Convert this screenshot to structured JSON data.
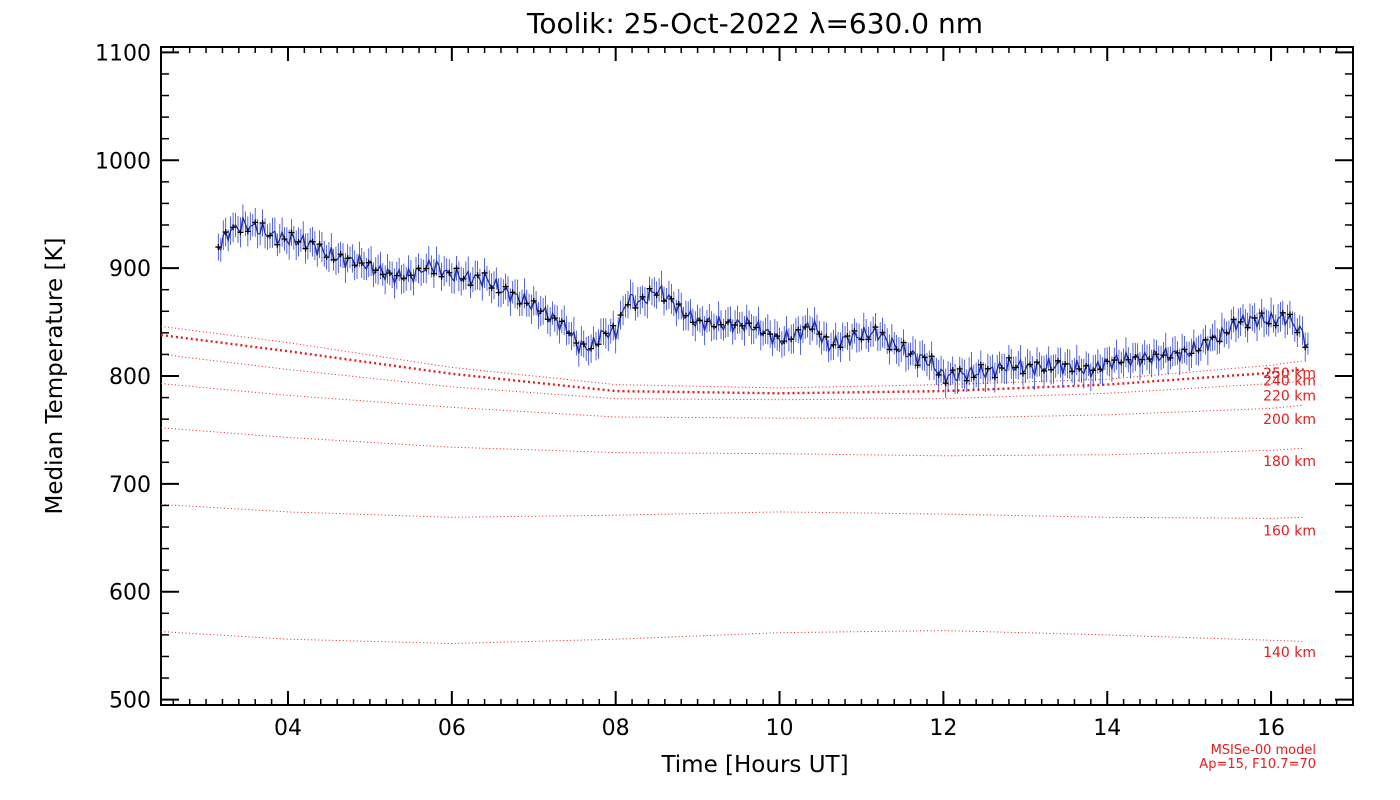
{
  "chart_data": {
    "type": "line",
    "title": "Toolik: 25-Oct-2022 λ=630.0 nm",
    "xlabel": "Time [Hours UT]",
    "ylabel": "Median Temperature [K]",
    "xlim": [
      2.45,
      17.0
    ],
    "ylim": [
      495,
      1105
    ],
    "x_ticks": [
      4,
      6,
      8,
      10,
      12,
      14,
      16
    ],
    "x_tick_labels": [
      "04",
      "06",
      "08",
      "10",
      "12",
      "14",
      "16"
    ],
    "y_ticks": [
      500,
      600,
      700,
      800,
      900,
      1000,
      1100
    ],
    "y_tick_labels": [
      "500",
      "600",
      "700",
      "800",
      "900",
      "1000",
      "1100"
    ],
    "grid": false,
    "colors": {
      "data_line": "#1f2f9c",
      "data_marker": "#000000",
      "error_bar": "#2a3fd6",
      "model": "#e02020"
    },
    "series": [
      {
        "type": "line+errorbars",
        "x": [
          3.15,
          3.3,
          3.45,
          3.6,
          3.75,
          3.9,
          4.1,
          4.3,
          4.5,
          4.7,
          4.9,
          5.1,
          5.3,
          5.5,
          5.75,
          6.0,
          6.2,
          6.4,
          6.6,
          6.8,
          7.0,
          7.2,
          7.4,
          7.55,
          7.7,
          7.85,
          8.0,
          8.15,
          8.3,
          8.5,
          8.65,
          8.8,
          9.0,
          9.2,
          9.4,
          9.6,
          9.8,
          10.0,
          10.2,
          10.4,
          10.6,
          10.8,
          11.0,
          11.2,
          11.4,
          11.6,
          11.8,
          12.0,
          12.2,
          12.4,
          12.6,
          12.8,
          13.0,
          13.2,
          13.4,
          13.6,
          13.8,
          14.0,
          14.2,
          14.4,
          14.6,
          14.8,
          15.0,
          15.2,
          15.4,
          15.6,
          15.8,
          16.0,
          16.2,
          16.35,
          16.45
        ],
        "y": [
          920,
          935,
          940,
          938,
          932,
          928,
          926,
          922,
          912,
          908,
          905,
          898,
          892,
          893,
          903,
          893,
          891,
          890,
          880,
          873,
          865,
          855,
          845,
          828,
          826,
          840,
          840,
          872,
          868,
          880,
          872,
          860,
          850,
          848,
          848,
          848,
          842,
          833,
          838,
          848,
          828,
          834,
          838,
          840,
          828,
          820,
          815,
          800,
          801,
          803,
          805,
          810,
          808,
          808,
          810,
          808,
          805,
          812,
          815,
          816,
          818,
          820,
          822,
          830,
          838,
          850,
          852,
          852,
          854,
          842,
          830
        ],
        "error": 10
      }
    ],
    "model_curves": [
      {
        "label": "250 km",
        "x": [
          2.45,
          4,
          6,
          8,
          10,
          12,
          14,
          16,
          16.4
        ],
        "y": [
          846,
          831,
          808,
          792,
          789,
          792,
          797,
          810,
          814
        ]
      },
      {
        "label": "240 km",
        "x": [
          2.45,
          4,
          6,
          8,
          10,
          12,
          14,
          16,
          16.4
        ],
        "y": [
          838,
          823,
          802,
          786,
          784,
          786,
          792,
          803,
          806
        ]
      },
      {
        "label": "220 km",
        "x": [
          2.45,
          4,
          6,
          8,
          10,
          12,
          14,
          16,
          16.4
        ],
        "y": [
          820,
          806,
          790,
          779,
          778,
          779,
          784,
          793,
          795
        ]
      },
      {
        "label": "200 km",
        "x": [
          2.45,
          4,
          6,
          8,
          10,
          12,
          14,
          16,
          16.4
        ],
        "y": [
          793,
          782,
          771,
          762,
          761,
          761,
          764,
          770,
          773
        ]
      },
      {
        "label": "180 km",
        "x": [
          2.45,
          4,
          6,
          8,
          10,
          12,
          14,
          16,
          16.4
        ],
        "y": [
          752,
          743,
          734,
          729,
          728,
          726,
          727,
          731,
          733
        ]
      },
      {
        "label": "160 km",
        "x": [
          2.45,
          4,
          6,
          8,
          10,
          12,
          14,
          16,
          16.4
        ],
        "y": [
          681,
          674,
          669,
          671,
          674,
          672,
          669,
          668,
          669
        ]
      },
      {
        "label": "140 km",
        "x": [
          2.45,
          4,
          6,
          8,
          10,
          12,
          14,
          16,
          16.4
        ],
        "y": [
          563,
          556,
          552,
          556,
          562,
          564,
          560,
          555,
          554
        ]
      }
    ],
    "model_label_y": {
      "250 km": 803,
      "240 km": 796,
      "220 km": 782,
      "200 km": 760,
      "180 km": 721,
      "160 km": 657,
      "140 km": 544
    },
    "note": [
      "MSISe-00 model",
      "Ap=15, F10.7=70"
    ]
  }
}
